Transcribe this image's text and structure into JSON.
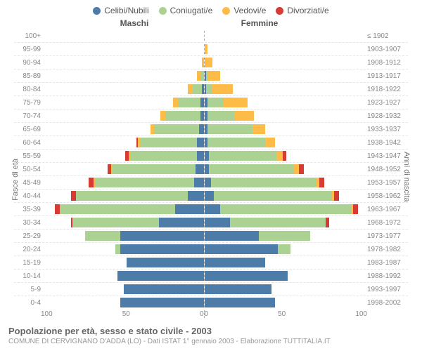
{
  "legend": [
    {
      "label": "Celibi/Nubili",
      "color": "#4d7ca8"
    },
    {
      "label": "Coniugati/e",
      "color": "#abd193"
    },
    {
      "label": "Vedovi/e",
      "color": "#fdbb48"
    },
    {
      "label": "Divorziati/e",
      "color": "#d83a34"
    }
  ],
  "col_headers": {
    "left": "Maschi",
    "right": "Femmine"
  },
  "y_left_title": "Fasce di età",
  "y_right_title": "Anni di nascita",
  "title": "Popolazione per età, sesso e stato civile - 2003",
  "subtitle": "COMUNE DI CERVIGNANO D'ADDA (LO) - Dati ISTAT 1° gennaio 2003 - Elaborazione TUTTITALIA.IT",
  "x_ticks_left": [
    "100",
    "50",
    "0"
  ],
  "x_ticks_right": [
    "0",
    "50",
    "100"
  ],
  "max": 100,
  "colors": {
    "cel": "#4d7ca8",
    "con": "#abd193",
    "ved": "#fdbb48",
    "div": "#d83a34"
  },
  "rows": [
    {
      "age": "100+",
      "year": "≤ 1902",
      "m": {
        "cel": 0,
        "con": 0,
        "ved": 0,
        "div": 0
      },
      "f": {
        "cel": 0,
        "con": 0,
        "ved": 0,
        "div": 0
      }
    },
    {
      "age": "95-99",
      "year": "1903-1907",
      "m": {
        "cel": 0,
        "con": 0,
        "ved": 0,
        "div": 0
      },
      "f": {
        "cel": 0,
        "con": 0,
        "ved": 2,
        "div": 0
      }
    },
    {
      "age": "90-94",
      "year": "1908-1912",
      "m": {
        "cel": 0,
        "con": 0,
        "ved": 1,
        "div": 0
      },
      "f": {
        "cel": 0,
        "con": 0,
        "ved": 5,
        "div": 0
      }
    },
    {
      "age": "85-89",
      "year": "1913-1917",
      "m": {
        "cel": 0,
        "con": 2,
        "ved": 2,
        "div": 0
      },
      "f": {
        "cel": 1,
        "con": 1,
        "ved": 8,
        "div": 0
      }
    },
    {
      "age": "80-84",
      "year": "1918-1922",
      "m": {
        "cel": 1,
        "con": 6,
        "ved": 3,
        "div": 0
      },
      "f": {
        "cel": 1,
        "con": 4,
        "ved": 13,
        "div": 0
      }
    },
    {
      "age": "75-79",
      "year": "1923-1927",
      "m": {
        "cel": 2,
        "con": 14,
        "ved": 3,
        "div": 0
      },
      "f": {
        "cel": 2,
        "con": 10,
        "ved": 15,
        "div": 0
      }
    },
    {
      "age": "70-74",
      "year": "1928-1932",
      "m": {
        "cel": 2,
        "con": 22,
        "ved": 3,
        "div": 0
      },
      "f": {
        "cel": 2,
        "con": 17,
        "ved": 12,
        "div": 0
      }
    },
    {
      "age": "65-69",
      "year": "1933-1937",
      "m": {
        "cel": 3,
        "con": 28,
        "ved": 2,
        "div": 0
      },
      "f": {
        "cel": 2,
        "con": 28,
        "ved": 8,
        "div": 0
      }
    },
    {
      "age": "60-64",
      "year": "1938-1942",
      "m": {
        "cel": 4,
        "con": 36,
        "ved": 1,
        "div": 1
      },
      "f": {
        "cel": 2,
        "con": 36,
        "ved": 6,
        "div": 0
      }
    },
    {
      "age": "55-59",
      "year": "1943-1947",
      "m": {
        "cel": 4,
        "con": 42,
        "ved": 1,
        "div": 2
      },
      "f": {
        "cel": 3,
        "con": 42,
        "ved": 4,
        "div": 2
      }
    },
    {
      "age": "50-54",
      "year": "1948-1952",
      "m": {
        "cel": 5,
        "con": 52,
        "ved": 1,
        "div": 2
      },
      "f": {
        "cel": 3,
        "con": 53,
        "ved": 3,
        "div": 3
      }
    },
    {
      "age": "45-49",
      "year": "1953-1957",
      "m": {
        "cel": 6,
        "con": 62,
        "ved": 1,
        "div": 3
      },
      "f": {
        "cel": 4,
        "con": 66,
        "ved": 2,
        "div": 3
      }
    },
    {
      "age": "40-44",
      "year": "1958-1962",
      "m": {
        "cel": 10,
        "con": 70,
        "ved": 0,
        "div": 3
      },
      "f": {
        "cel": 6,
        "con": 74,
        "ved": 1,
        "div": 3
      }
    },
    {
      "age": "35-39",
      "year": "1963-1967",
      "m": {
        "cel": 18,
        "con": 72,
        "ved": 0,
        "div": 3
      },
      "f": {
        "cel": 10,
        "con": 82,
        "ved": 1,
        "div": 3
      }
    },
    {
      "age": "30-34",
      "year": "1968-1972",
      "m": {
        "cel": 28,
        "con": 54,
        "ved": 0,
        "div": 1
      },
      "f": {
        "cel": 16,
        "con": 60,
        "ved": 0,
        "div": 2
      }
    },
    {
      "age": "25-29",
      "year": "1973-1977",
      "m": {
        "cel": 52,
        "con": 22,
        "ved": 0,
        "div": 0
      },
      "f": {
        "cel": 34,
        "con": 32,
        "ved": 0,
        "div": 0
      }
    },
    {
      "age": "20-24",
      "year": "1978-1982",
      "m": {
        "cel": 52,
        "con": 3,
        "ved": 0,
        "div": 0
      },
      "f": {
        "cel": 46,
        "con": 8,
        "ved": 0,
        "div": 0
      }
    },
    {
      "age": "15-19",
      "year": "1983-1987",
      "m": {
        "cel": 48,
        "con": 0,
        "ved": 0,
        "div": 0
      },
      "f": {
        "cel": 38,
        "con": 0,
        "ved": 0,
        "div": 0
      }
    },
    {
      "age": "10-14",
      "year": "1988-1992",
      "m": {
        "cel": 54,
        "con": 0,
        "ved": 0,
        "div": 0
      },
      "f": {
        "cel": 52,
        "con": 0,
        "ved": 0,
        "div": 0
      }
    },
    {
      "age": "5-9",
      "year": "1993-1997",
      "m": {
        "cel": 50,
        "con": 0,
        "ved": 0,
        "div": 0
      },
      "f": {
        "cel": 42,
        "con": 0,
        "ved": 0,
        "div": 0
      }
    },
    {
      "age": "0-4",
      "year": "1998-2002",
      "m": {
        "cel": 52,
        "con": 0,
        "ved": 0,
        "div": 0
      },
      "f": {
        "cel": 44,
        "con": 0,
        "ved": 0,
        "div": 0
      }
    }
  ]
}
